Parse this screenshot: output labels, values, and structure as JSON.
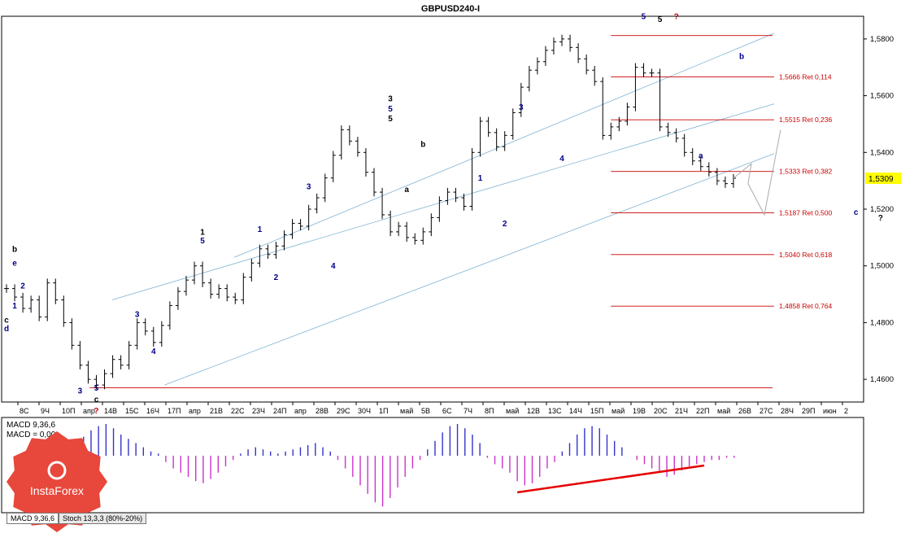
{
  "chart_data": {
    "type": "line",
    "title": "GBPUSD240-I",
    "instrument": "GBPUSD",
    "timeframe": "H4",
    "last_price": "1,5309",
    "last_price_value": 1.5309,
    "ylim": [
      1.452,
      1.588
    ],
    "yticks": [
      "1,5800",
      "1,5600",
      "1,5400",
      "1,5200",
      "1,5000",
      "1,4800",
      "1,4600"
    ],
    "ytick_values": [
      1.58,
      1.56,
      1.54,
      1.52,
      1.5,
      1.48,
      1.46
    ],
    "xticks": [
      "8С",
      "9Ч",
      "10П",
      "апр",
      "14В",
      "15С",
      "16Ч",
      "17П",
      "апр",
      "21В",
      "22С",
      "23Ч",
      "24П",
      "апр",
      "28В",
      "29С",
      "30Ч",
      "1П",
      "май",
      "5В",
      "6С",
      "7Ч",
      "8П",
      "май",
      "12В",
      "13С",
      "14Ч",
      "15П",
      "май",
      "19В",
      "20С",
      "21Ч",
      "22П",
      "май",
      "26В",
      "27С",
      "28Ч",
      "29П",
      "июн",
      "2"
    ],
    "price_series": [
      1.492,
      1.489,
      1.485,
      1.488,
      1.482,
      1.494,
      1.488,
      1.48,
      1.472,
      1.465,
      1.46,
      1.458,
      1.462,
      1.467,
      1.465,
      1.472,
      1.48,
      1.477,
      1.473,
      1.479,
      1.486,
      1.491,
      1.495,
      1.5,
      1.494,
      1.49,
      1.492,
      1.489,
      1.488,
      1.496,
      1.501,
      1.506,
      1.504,
      1.507,
      1.511,
      1.515,
      1.514,
      1.52,
      1.524,
      1.531,
      1.539,
      1.548,
      1.544,
      1.54,
      1.533,
      1.526,
      1.518,
      1.512,
      1.514,
      1.51,
      1.509,
      1.512,
      1.517,
      1.523,
      1.526,
      1.524,
      1.521,
      1.54,
      1.551,
      1.547,
      1.542,
      1.546,
      1.554,
      1.563,
      1.569,
      1.572,
      1.576,
      1.579,
      1.58,
      1.577,
      1.573,
      1.569,
      1.565,
      1.546,
      1.549,
      1.551,
      1.556,
      1.57,
      1.568,
      1.568,
      1.549,
      1.547,
      1.545,
      1.54,
      1.537,
      1.535,
      1.533,
      1.53,
      1.529,
      1.5309
    ],
    "retracements": [
      {
        "label": "1,5666 Ret 0,114",
        "value": 1.5666
      },
      {
        "label": "1,5515 Ret 0,236",
        "value": 1.5515
      },
      {
        "label": "1,5333 Ret 0,382",
        "value": 1.5333
      },
      {
        "label": "1,5187 Ret 0,500",
        "value": 1.5187
      },
      {
        "label": "1,5040 Ret 0,618",
        "value": 1.504
      },
      {
        "label": "1,4858 Ret 0,764",
        "value": 1.4858
      }
    ],
    "levels": [
      {
        "value": 1.5812
      },
      {
        "value": 1.457
      }
    ],
    "wave_labels": [
      {
        "t": "b",
        "c": "#000000",
        "i": 1,
        "v": 1.505
      },
      {
        "t": "e",
        "c": "#00008b",
        "i": 1,
        "v": 1.5
      },
      {
        "t": "2",
        "c": "#00008b",
        "i": 2,
        "v": 1.492
      },
      {
        "t": "1",
        "c": "#00008b",
        "i": 1,
        "v": 1.485
      },
      {
        "t": "c",
        "c": "#000000",
        "i": 0,
        "v": 1.48
      },
      {
        "t": "d",
        "c": "#00008b",
        "i": 0,
        "v": 1.477
      },
      {
        "t": "c",
        "c": "#000000",
        "i": 11,
        "v": 1.452
      },
      {
        "t": "?",
        "c": "#cc0000",
        "i": 11,
        "v": 1.448
      },
      {
        "t": "5",
        "c": "#00008b",
        "i": 11,
        "v": 1.456
      },
      {
        "t": "3",
        "c": "#00008b",
        "i": 9,
        "v": 1.455
      },
      {
        "t": "3",
        "c": "#00008b",
        "i": 16,
        "v": 1.482
      },
      {
        "t": "4",
        "c": "#00008b",
        "i": 18,
        "v": 1.469
      },
      {
        "t": "1",
        "c": "#000000",
        "i": 24,
        "v": 1.511
      },
      {
        "t": "5",
        "c": "#00008b",
        "i": 24,
        "v": 1.508
      },
      {
        "t": "1",
        "c": "#00008b",
        "i": 31,
        "v": 1.512
      },
      {
        "t": "2",
        "c": "#00008b",
        "i": 33,
        "v": 1.495
      },
      {
        "t": "3",
        "c": "#00008b",
        "i": 37,
        "v": 1.527
      },
      {
        "t": "4",
        "c": "#00008b",
        "i": 40,
        "v": 1.499
      },
      {
        "t": "3",
        "c": "#000000",
        "i": 47,
        "v": 1.558
      },
      {
        "t": "5",
        "c": "#00008b",
        "i": 47,
        "v": 1.5545
      },
      {
        "t": "5",
        "c": "#000000",
        "i": 47,
        "v": 1.551
      },
      {
        "t": "b",
        "c": "#000000",
        "i": 51,
        "v": 1.542
      },
      {
        "t": "a",
        "c": "#000000",
        "i": 49,
        "v": 1.526
      },
      {
        "t": "1",
        "c": "#00008b",
        "i": 58,
        "v": 1.53
      },
      {
        "t": "2",
        "c": "#00008b",
        "i": 61,
        "v": 1.514
      },
      {
        "t": "3",
        "c": "#00008b",
        "i": 63,
        "v": 1.555
      },
      {
        "t": "4",
        "c": "#00008b",
        "i": 68,
        "v": 1.537
      },
      {
        "t": "5",
        "c": "#00008b",
        "i": 78,
        "v": 1.587
      },
      {
        "t": "5",
        "c": "#000000",
        "i": 80,
        "v": 1.586
      },
      {
        "t": "?",
        "c": "#cc0000",
        "i": 82,
        "v": 1.587
      },
      {
        "t": "b",
        "c": "#00008b",
        "i": 90,
        "v": 1.573
      },
      {
        "t": "a",
        "c": "#00008b",
        "i": 85,
        "v": 1.538
      },
      {
        "t": "c",
        "c": "#00008b",
        "i": 104,
        "v": 1.518
      },
      {
        "t": "?",
        "c": "#000000",
        "i": 107,
        "v": 1.516
      }
    ]
  },
  "indicators": {
    "macd_label": "MACD 9,36,6",
    "macd_value_label": "MACD = 0,00",
    "macd_values": [
      -6,
      -8,
      -9,
      -7,
      -4,
      -2,
      -1,
      3,
      6,
      9,
      12,
      14,
      15,
      13,
      10,
      8,
      6,
      4,
      2,
      1,
      -3,
      -6,
      -8,
      -10,
      -12,
      -13,
      -11,
      -8,
      -5,
      -2,
      1,
      3,
      4,
      3,
      2,
      1,
      2,
      3,
      4,
      5,
      6,
      4,
      2,
      -2,
      -6,
      -10,
      -14,
      -18,
      -22,
      -24,
      -20,
      -15,
      -10,
      -6,
      -2,
      3,
      7,
      11,
      14,
      15,
      13,
      10,
      6,
      -1,
      -4,
      -6,
      -8,
      -12,
      -14,
      -13,
      -10,
      -6,
      -3,
      2,
      6,
      10,
      13,
      14,
      13,
      10,
      7,
      4,
      0,
      -2,
      -4,
      -6,
      -8,
      -10,
      -9,
      -7,
      -5,
      -4,
      -3,
      -2,
      -2,
      -1,
      -1
    ],
    "trend_line": true,
    "tabs": [
      "MACD 9,36,6",
      "Stoch 13,3,3 (80%-20%)"
    ]
  },
  "branding": {
    "logo_text": "InstaForex"
  },
  "colors": {
    "bg": "#ffffff",
    "axis": "#000000",
    "candle": "#000000",
    "channel": "#7fb3d5",
    "fib": "#cc0000",
    "macd_pos": "#3333cc",
    "macd_neg": "#cc33cc",
    "trend": "#e60000",
    "logo": "#e8473b",
    "price_box": "#ffff00"
  }
}
